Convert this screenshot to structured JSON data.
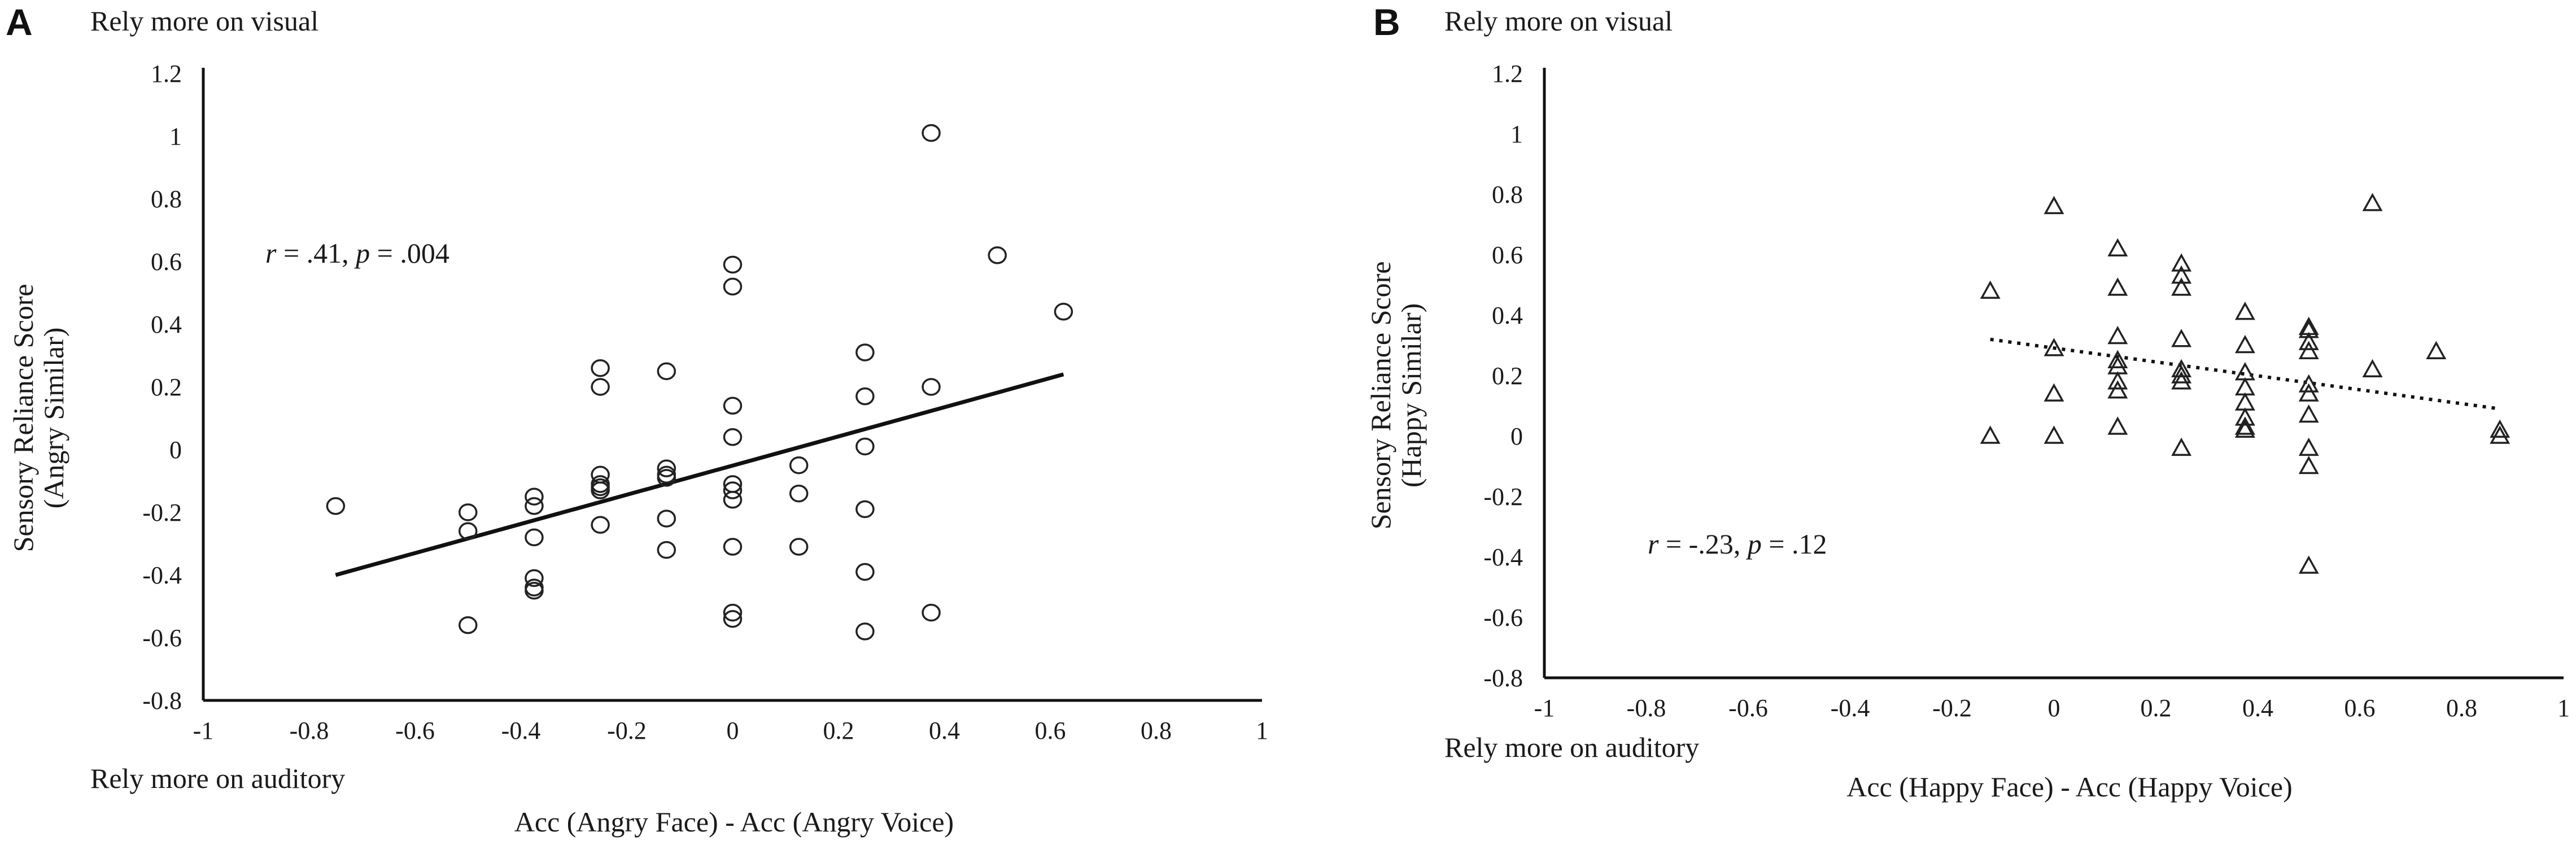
{
  "chart_data": [
    {
      "panel": "A",
      "type": "scatter",
      "title": "",
      "xlabel": "Acc (Angry Face) - Acc (Angry Voice)",
      "ylabel_line1": "Sensory Reliance Score",
      "ylabel_line2": "(Angry Similar)",
      "annotation_top": "Rely more on visual",
      "annotation_bottom": "Rely more on auditory",
      "stat_r_symbol": "r",
      "stat_r_value": " = .41, ",
      "stat_p_symbol": "p",
      "stat_p_value": " = .004",
      "xlim": [
        -1,
        1
      ],
      "ylim": [
        -0.8,
        1.2
      ],
      "x_ticks": [
        -1,
        -0.8,
        -0.6,
        -0.4,
        -0.2,
        0,
        0.2,
        0.4,
        0.6,
        0.8,
        1
      ],
      "x_tick_labels": [
        "-1",
        "-0.8",
        "-0.6",
        "-0.4",
        "-0.2",
        "0",
        "0.2",
        "0.4",
        "0.6",
        "0.8",
        "1"
      ],
      "y_ticks": [
        -0.8,
        -0.6,
        -0.4,
        -0.2,
        0,
        0.2,
        0.4,
        0.6,
        0.8,
        1,
        1.2
      ],
      "y_tick_labels": [
        "-0.8",
        "-0.6",
        "-0.4",
        "-0.2",
        "0",
        "0.2",
        "0.4",
        "0.6",
        "0.8",
        "1",
        "1.2"
      ],
      "marker": "circle",
      "points": [
        [
          -0.75,
          -0.18
        ],
        [
          -0.5,
          -0.2
        ],
        [
          -0.5,
          -0.26
        ],
        [
          -0.5,
          -0.56
        ],
        [
          -0.375,
          -0.15
        ],
        [
          -0.375,
          -0.18
        ],
        [
          -0.375,
          -0.28
        ],
        [
          -0.375,
          -0.41
        ],
        [
          -0.375,
          -0.44
        ],
        [
          -0.375,
          -0.45
        ],
        [
          -0.25,
          0.26
        ],
        [
          -0.25,
          0.2
        ],
        [
          -0.25,
          -0.08
        ],
        [
          -0.25,
          -0.11
        ],
        [
          -0.25,
          -0.12
        ],
        [
          -0.25,
          -0.13
        ],
        [
          -0.25,
          -0.24
        ],
        [
          -0.125,
          0.25
        ],
        [
          -0.125,
          -0.06
        ],
        [
          -0.125,
          -0.08
        ],
        [
          -0.125,
          -0.09
        ],
        [
          -0.125,
          -0.22
        ],
        [
          -0.125,
          -0.32
        ],
        [
          0,
          0.59
        ],
        [
          0,
          0.52
        ],
        [
          0,
          0.14
        ],
        [
          0,
          0.04
        ],
        [
          0,
          -0.11
        ],
        [
          0,
          -0.13
        ],
        [
          0,
          -0.16
        ],
        [
          0,
          -0.31
        ],
        [
          0,
          -0.52
        ],
        [
          0,
          -0.54
        ],
        [
          0.125,
          -0.05
        ],
        [
          0.125,
          -0.14
        ],
        [
          0.125,
          -0.31
        ],
        [
          0.25,
          0.31
        ],
        [
          0.25,
          0.17
        ],
        [
          0.25,
          0.01
        ],
        [
          0.25,
          -0.19
        ],
        [
          0.25,
          -0.39
        ],
        [
          0.25,
          -0.58
        ],
        [
          0.375,
          1.01
        ],
        [
          0.375,
          0.2
        ],
        [
          0.375,
          -0.52
        ],
        [
          0.5,
          0.62
        ],
        [
          0.625,
          0.44
        ]
      ],
      "trendline": {
        "style": "solid",
        "x": [
          -0.75,
          0.625
        ],
        "y": [
          -0.4,
          0.24
        ]
      }
    },
    {
      "panel": "B",
      "type": "scatter",
      "title": "",
      "xlabel": "Acc (Happy Face) - Acc (Happy Voice)",
      "ylabel_line1": "Sensory Reliance Score",
      "ylabel_line2": "(Happy Similar)",
      "annotation_top": "Rely more on visual",
      "annotation_bottom": "Rely more on auditory",
      "stat_r_symbol": "r",
      "stat_r_value": " = -.23, ",
      "stat_p_symbol": "p",
      "stat_p_value": " = .12",
      "xlim": [
        -1,
        1
      ],
      "ylim": [
        -0.8,
        1.2
      ],
      "x_ticks": [
        -1,
        -0.8,
        -0.6,
        -0.4,
        -0.2,
        0,
        0.2,
        0.4,
        0.6,
        0.8,
        1
      ],
      "x_tick_labels": [
        "-1",
        "-0.8",
        "-0.6",
        "-0.4",
        "-0.2",
        "0",
        "0.2",
        "0.4",
        "0.6",
        "0.8",
        "1"
      ],
      "y_ticks": [
        -0.8,
        -0.6,
        -0.4,
        -0.2,
        0,
        0.2,
        0.4,
        0.6,
        0.8,
        1,
        1.2
      ],
      "y_tick_labels": [
        "-0.8",
        "-0.6",
        "-0.4",
        "-0.2",
        "0",
        "0.2",
        "0.4",
        "0.6",
        "0.8",
        "1",
        "1.2"
      ],
      "marker": "triangle",
      "points": [
        [
          -0.125,
          0.48
        ],
        [
          -0.125,
          0.0
        ],
        [
          0,
          0.76
        ],
        [
          0,
          0.29
        ],
        [
          0,
          0.14
        ],
        [
          0,
          0.0
        ],
        [
          0.125,
          0.62
        ],
        [
          0.125,
          0.49
        ],
        [
          0.125,
          0.33
        ],
        [
          0.125,
          0.25
        ],
        [
          0.125,
          0.23
        ],
        [
          0.125,
          0.18
        ],
        [
          0.125,
          0.15
        ],
        [
          0.125,
          0.03
        ],
        [
          0.25,
          0.57
        ],
        [
          0.25,
          0.53
        ],
        [
          0.25,
          0.49
        ],
        [
          0.25,
          0.32
        ],
        [
          0.25,
          0.22
        ],
        [
          0.25,
          0.2
        ],
        [
          0.25,
          0.18
        ],
        [
          0.25,
          -0.04
        ],
        [
          0.375,
          0.41
        ],
        [
          0.375,
          0.3
        ],
        [
          0.375,
          0.21
        ],
        [
          0.375,
          0.16
        ],
        [
          0.375,
          0.11
        ],
        [
          0.375,
          0.06
        ],
        [
          0.375,
          0.03
        ],
        [
          0.375,
          0.02
        ],
        [
          0.5,
          0.36
        ],
        [
          0.5,
          0.35
        ],
        [
          0.5,
          0.31
        ],
        [
          0.5,
          0.28
        ],
        [
          0.5,
          0.17
        ],
        [
          0.5,
          0.14
        ],
        [
          0.5,
          0.07
        ],
        [
          0.5,
          -0.04
        ],
        [
          0.5,
          -0.1
        ],
        [
          0.5,
          -0.43
        ],
        [
          0.625,
          0.77
        ],
        [
          0.625,
          0.22
        ],
        [
          0.75,
          0.28
        ],
        [
          0.875,
          0.02
        ],
        [
          0.875,
          0.0
        ]
      ],
      "trendline": {
        "style": "dotted",
        "x": [
          -0.125,
          0.875
        ],
        "y": [
          0.32,
          0.09
        ]
      }
    }
  ]
}
